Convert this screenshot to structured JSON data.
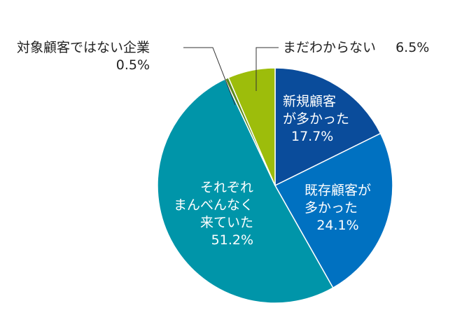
{
  "chart_data": {
    "type": "pie",
    "title": "",
    "start": "top",
    "direction": "clockwise",
    "slices": [
      {
        "label": "新規顧客が多かった",
        "lines": [
          "新規顧客",
          "が多かった"
        ],
        "value": 17.7,
        "value_label": "17.7%",
        "color": "#0a4c9b"
      },
      {
        "label": "既存顧客が多かった",
        "lines": [
          "既存顧客が",
          "多かった"
        ],
        "value": 24.1,
        "value_label": "24.1%",
        "color": "#0071c1"
      },
      {
        "label": "それぞれまんべんなく来ていた",
        "lines": [
          "それぞれ",
          "まんべんなく",
          "来ていた"
        ],
        "value": 51.2,
        "value_label": "51.2%",
        "color": "#0095a9"
      },
      {
        "label": "対象顧客ではない企業",
        "lines": [
          "対象顧客ではない企業"
        ],
        "value": 0.5,
        "value_label": "0.5%",
        "color": "#5e8a1e"
      },
      {
        "label": "まだわからない",
        "lines": [
          "まだわからない"
        ],
        "value": 6.5,
        "value_label": "6.5%",
        "color": "#9dbd0b"
      }
    ]
  }
}
